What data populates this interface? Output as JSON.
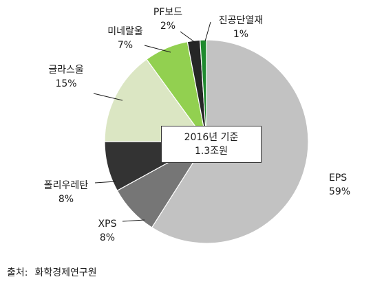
{
  "chart_data": {
    "type": "pie",
    "categories": [
      "EPS",
      "XPS",
      "폴리우레탄",
      "글라스울",
      "미네랄울",
      "PF보드",
      "진공단열재"
    ],
    "values": [
      59,
      8,
      8,
      15,
      7,
      2,
      1
    ],
    "value_labels": [
      "59%",
      "8%",
      "8%",
      "15%",
      "7%",
      "2%",
      "1%"
    ],
    "colors": [
      "#c2c2c2",
      "#767676",
      "#333333",
      "#dbe6c3",
      "#92d050",
      "#262626",
      "#1f8a2e"
    ],
    "start_angle_deg": 0,
    "direction": "clockwise",
    "center_text": {
      "line1": "2016년 기준",
      "line2": "1.3조원"
    }
  },
  "source": {
    "label": "출처:",
    "text": "화학경제연구원"
  }
}
